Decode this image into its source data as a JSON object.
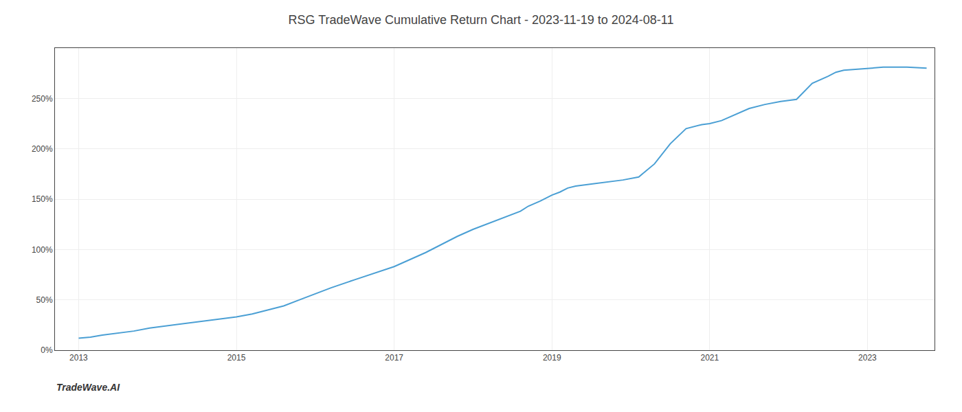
{
  "chart_data": {
    "type": "line",
    "title": "RSG TradeWave Cumulative Return Chart - 2023-11-19 to 2024-08-11",
    "annotations": [
      "TradeWave.AI"
    ],
    "color": "#4a9fd4",
    "grid": true,
    "x": [
      2013.0,
      2013.15,
      2013.3,
      2013.5,
      2013.7,
      2013.9,
      2014.1,
      2014.3,
      2014.5,
      2014.7,
      2014.9,
      2015.0,
      2015.2,
      2015.4,
      2015.6,
      2015.8,
      2016.0,
      2016.2,
      2016.5,
      2016.8,
      2017.0,
      2017.2,
      2017.4,
      2017.6,
      2017.8,
      2018.0,
      2018.2,
      2018.4,
      2018.6,
      2018.7,
      2018.85,
      2019.0,
      2019.1,
      2019.2,
      2019.3,
      2019.5,
      2019.7,
      2019.9,
      2020.1,
      2020.3,
      2020.5,
      2020.7,
      2020.9,
      2021.0,
      2021.15,
      2021.3,
      2021.5,
      2021.7,
      2021.9,
      2022.1,
      2022.3,
      2022.5,
      2022.6,
      2022.7,
      2022.85,
      2023.0,
      2023.2,
      2023.5,
      2023.75
    ],
    "values": [
      12,
      13,
      15,
      17,
      19,
      22,
      24,
      26,
      28,
      30,
      32,
      33,
      36,
      40,
      44,
      50,
      56,
      62,
      70,
      78,
      83,
      90,
      97,
      105,
      113,
      120,
      126,
      132,
      138,
      143,
      148,
      154,
      157,
      161,
      163,
      165,
      167,
      169,
      172,
      185,
      205,
      220,
      224,
      225,
      228,
      233,
      240,
      244,
      247,
      249,
      265,
      272,
      276,
      278,
      279,
      280,
      281,
      281,
      280
    ],
    "xlim": [
      2012.7,
      2023.85
    ],
    "xticks": [
      2013,
      2015,
      2017,
      2019,
      2021,
      2023
    ],
    "ylim": [
      0,
      300
    ],
    "yticks": [
      {
        "value": 0,
        "label": "0%"
      },
      {
        "value": 50,
        "label": "50%"
      },
      {
        "value": 100,
        "label": "100%"
      },
      {
        "value": 150,
        "label": "150%"
      },
      {
        "value": 200,
        "label": "200%"
      },
      {
        "value": 250,
        "label": "250%"
      }
    ]
  }
}
